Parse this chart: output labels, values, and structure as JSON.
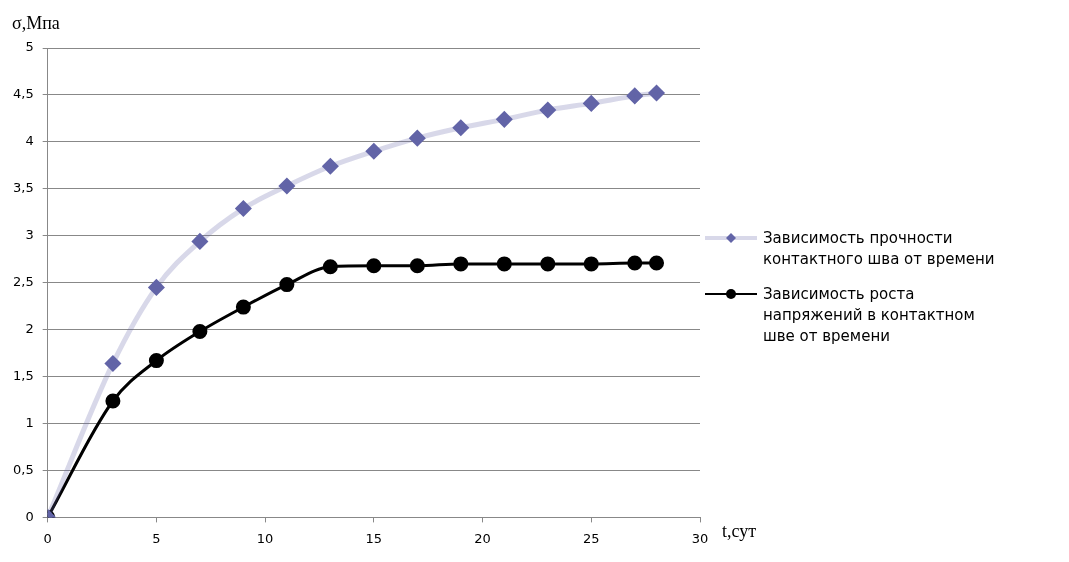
{
  "chart_data": {
    "type": "line",
    "xlabel": "t,сут",
    "ylabel": "σ,Мпа",
    "x": [
      0,
      3,
      5,
      7,
      9,
      11,
      13,
      15,
      17,
      19,
      21,
      23,
      25,
      27,
      28
    ],
    "series": [
      {
        "name": "Зависимость прочности контактного шва  от времени",
        "color": "#6264a7",
        "marker": "diamond",
        "values": [
          0,
          1.64,
          2.45,
          2.94,
          3.29,
          3.53,
          3.74,
          3.9,
          4.04,
          4.15,
          4.24,
          4.34,
          4.41,
          4.49,
          4.52
        ]
      },
      {
        "name": "Зависимость роста напряжений в контактном шве от времени",
        "color": "#000000",
        "marker": "circle",
        "values": [
          0,
          1.24,
          1.67,
          1.98,
          2.24,
          2.48,
          2.67,
          2.68,
          2.68,
          2.7,
          2.7,
          2.7,
          2.7,
          2.71,
          2.71
        ]
      }
    ],
    "xlim": [
      0,
      30
    ],
    "xticks": [
      0,
      5,
      10,
      15,
      20,
      25,
      30
    ],
    "ylim": [
      0,
      5
    ],
    "yticks": [
      0,
      {
        "value": 0.5,
        "label": "0,5"
      },
      1,
      {
        "value": 1.5,
        "label": "1,5"
      },
      2,
      {
        "value": 2.5,
        "label": "2,5"
      },
      3,
      {
        "value": 3.5,
        "label": "3,5"
      },
      4,
      {
        "value": 4.5,
        "label": "4,5"
      },
      5
    ],
    "grid": "y",
    "legend": "right",
    "line_style": "solid"
  }
}
